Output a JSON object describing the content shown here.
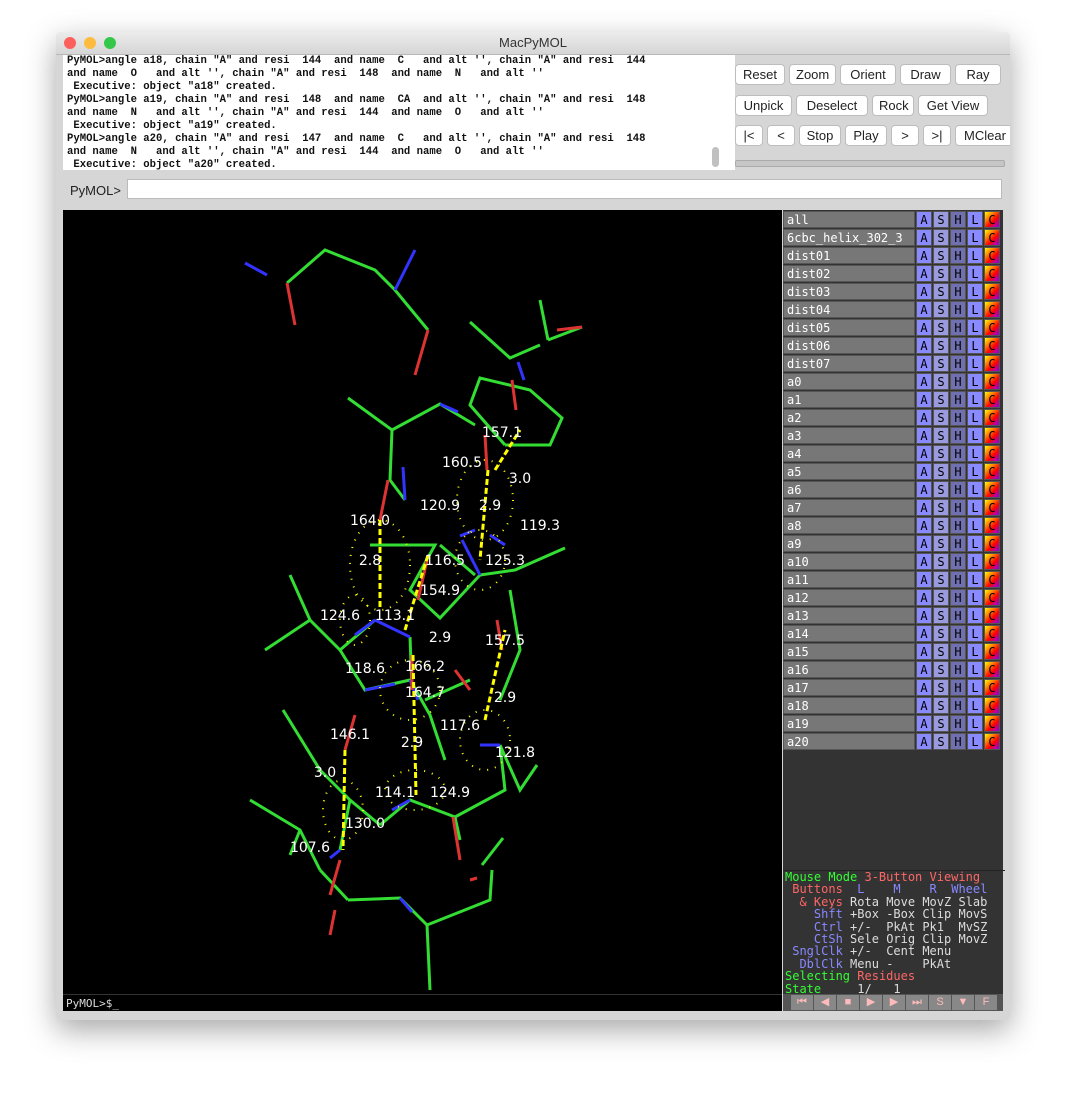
{
  "window": {
    "title": "MacPyMOL"
  },
  "console": {
    "lines": [
      "PyMOL>angle a18, chain \"A\" and resi  144  and name  C   and alt '', chain \"A\" and resi  144",
      "and name  O   and alt '', chain \"A\" and resi  148  and name  N   and alt ''",
      " Executive: object \"a18\" created.",
      "PyMOL>angle a19, chain \"A\" and resi  148  and name  CA  and alt '', chain \"A\" and resi  148",
      "and name  N   and alt '', chain \"A\" and resi  144  and name  O   and alt ''",
      " Executive: object \"a19\" created.",
      "PyMOL>angle a20, chain \"A\" and resi  147  and name  C   and alt '', chain \"A\" and resi  148",
      "and name  N   and alt '', chain \"A\" and resi  144  and name  O   and alt ''",
      " Executive: object \"a20\" created."
    ]
  },
  "buttons": {
    "row1": [
      "Reset",
      "Zoom",
      "Orient",
      "Draw",
      "Ray"
    ],
    "row2": [
      "Unpick",
      "Deselect",
      "Rock",
      "Get View"
    ],
    "row3": [
      "|<",
      "<",
      "Stop",
      "Play",
      ">",
      ">|",
      "MClear"
    ]
  },
  "command": {
    "label": "PyMOL>",
    "value": ""
  },
  "viewer": {
    "prompt": "PyMOL>$_",
    "colors": {
      "carbon": "#33dd33",
      "nitrogen": "#3333ff",
      "oxygen": "#dd3333",
      "measure": "#ffff00"
    },
    "labels": [
      "157.1",
      "160.5",
      "3.0",
      "164.0",
      "120.9",
      "2.9",
      "119.3",
      "116.5",
      "125.3",
      "2.8",
      "154.9",
      "124.6",
      "113.1",
      "2.9",
      "157.5",
      "118.6",
      "166.2",
      "164.7",
      "2.9",
      "146.1",
      "117.6",
      "121.8",
      "2.9",
      "3.0",
      "114.1",
      "124.9",
      "130.0",
      "107.6"
    ]
  },
  "objects": {
    "buttons": [
      "A",
      "S",
      "H",
      "L",
      "C"
    ],
    "items": [
      "all",
      "6cbc_helix_302_3",
      "dist01",
      "dist02",
      "dist03",
      "dist04",
      "dist05",
      "dist06",
      "dist07",
      "a0",
      "a1",
      "a2",
      "a3",
      "a4",
      "a5",
      "a6",
      "a7",
      "a8",
      "a9",
      "a10",
      "a11",
      "a12",
      "a13",
      "a14",
      "a15",
      "a16",
      "a17",
      "a18",
      "a19",
      "a20"
    ]
  },
  "mouse_mode": {
    "title": "Mouse Mode",
    "mode": "3-Button Viewing",
    "header": [
      "Buttons",
      "L",
      "M",
      "R",
      "Wheel"
    ],
    "rows": [
      {
        "key": "& Keys",
        "vals": [
          "Rota",
          "Move",
          "MovZ",
          "Slab"
        ]
      },
      {
        "key": "Shft",
        "vals": [
          "+Box",
          "-Box",
          "Clip",
          "MovS"
        ]
      },
      {
        "key": "Ctrl",
        "vals": [
          "+/-",
          "PkAt",
          "Pk1",
          "MvSZ"
        ]
      },
      {
        "key": "CtSh",
        "vals": [
          "Sele",
          "Orig",
          "Clip",
          "MovZ"
        ]
      },
      {
        "key": "SnglClk",
        "vals": [
          "+/-",
          "Cent",
          "Menu",
          ""
        ]
      },
      {
        "key": "DblClk",
        "vals": [
          "Menu",
          "-",
          "PkAt",
          ""
        ]
      }
    ],
    "selecting": "Selecting",
    "selecting_value": "Residues",
    "state_label": "State",
    "state_current": "1/",
    "state_total": "1"
  },
  "controls": [
    "⏮",
    "◀",
    "■",
    "▶",
    "▶",
    "⏭",
    "S",
    "▼",
    "F"
  ]
}
